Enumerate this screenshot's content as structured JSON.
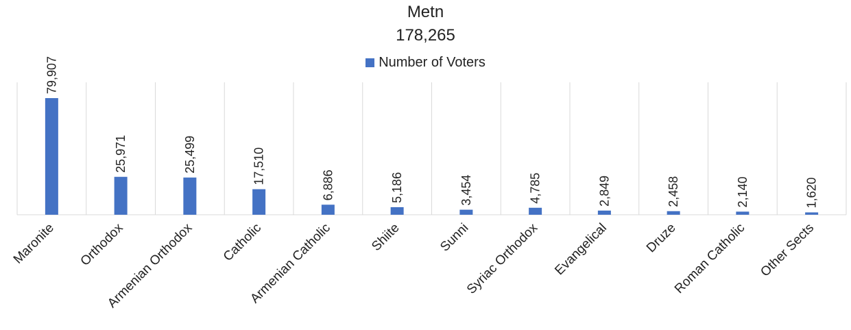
{
  "chart_data": {
    "type": "bar",
    "title": "Metn",
    "subtitle": "178,265",
    "categories": [
      "Maronite",
      "Orthodox",
      "Armenian Orthodox",
      "Catholic",
      "Armenian Catholic",
      "Shiite",
      "Sunni",
      "Syriac Orthodox",
      "Evangelical",
      "Druze",
      "Roman Catholic",
      "Other Sects"
    ],
    "series": [
      {
        "name": "Number of Voters",
        "values": [
          79907,
          25971,
          25499,
          17510,
          6886,
          5186,
          3454,
          4785,
          2849,
          2458,
          2140,
          1620
        ],
        "labels": [
          "79,907",
          "25,971",
          "25,499",
          "17,510",
          "6,886",
          "5,186",
          "3,454",
          "4,785",
          "2,849",
          "2,458",
          "2,140",
          "1,620"
        ]
      }
    ],
    "xlabel": "",
    "ylabel": "",
    "ylim": [
      0,
      90000
    ],
    "legend_position": "top",
    "grid": "vertical category separators",
    "bar_color": "#4472c4",
    "grid_color": "#d9d9d9"
  }
}
